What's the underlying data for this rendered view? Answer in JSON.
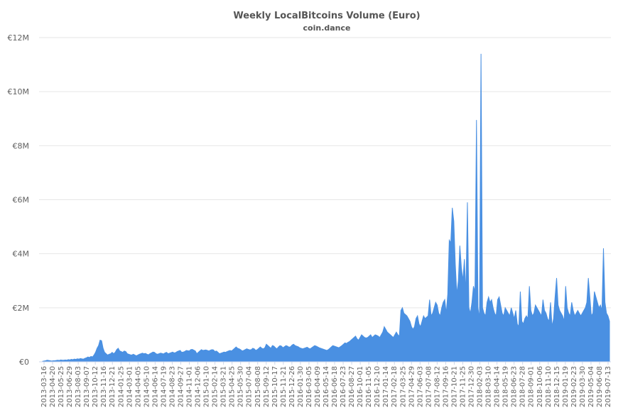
{
  "chart_data": {
    "type": "area",
    "title": "Weekly LocalBitcoins Volume (Euro)",
    "subtitle": "coin.dance",
    "xlabel": "",
    "ylabel": "",
    "ylim": [
      0,
      12000000
    ],
    "y_ticks": [
      {
        "value": 0,
        "label": "€0"
      },
      {
        "value": 2000000,
        "label": "€2M"
      },
      {
        "value": 4000000,
        "label": "€4M"
      },
      {
        "value": 6000000,
        "label": "€6M"
      },
      {
        "value": 8000000,
        "label": "€8M"
      },
      {
        "value": 10000000,
        "label": "€10M"
      },
      {
        "value": 12000000,
        "label": "€12M"
      }
    ],
    "x_ticks": [
      "2013-03-16",
      "2013-04-20",
      "2013-05-25",
      "2013-06-29",
      "2013-08-03",
      "2013-09-07",
      "2013-10-12",
      "2013-11-16",
      "2013-12-21",
      "2014-01-25",
      "2014-03-01",
      "2014-04-05",
      "2014-05-10",
      "2014-06-14",
      "2014-07-19",
      "2014-08-23",
      "2014-09-27",
      "2014-11-01",
      "2014-12-06",
      "2015-01-10",
      "2015-02-14",
      "2015-03-21",
      "2015-04-25",
      "2015-05-30",
      "2015-07-04",
      "2015-08-08",
      "2015-09-12",
      "2015-10-17",
      "2015-11-21",
      "2015-12-26",
      "2016-01-30",
      "2016-03-05",
      "2016-04-09",
      "2016-05-14",
      "2016-06-18",
      "2016-07-23",
      "2016-08-27",
      "2016-10-01",
      "2016-11-05",
      "2016-12-10",
      "2017-01-14",
      "2017-02-18",
      "2017-03-25",
      "2017-04-29",
      "2017-06-03",
      "2017-07-08",
      "2017-08-12",
      "2017-09-16",
      "2017-10-21",
      "2017-11-25",
      "2017-12-30",
      "2018-02-03",
      "2018-03-10",
      "2018-04-14",
      "2018-05-19",
      "2018-06-23",
      "2018-07-28",
      "2018-09-01",
      "2018-10-06",
      "2018-11-10",
      "2018-12-15",
      "2019-01-19",
      "2019-02-23",
      "2019-03-30",
      "2019-05-04",
      "2019-06-08",
      "2019-07-13"
    ],
    "grid": true,
    "legend": "none",
    "color": "#4a90e2",
    "series": [
      {
        "name": "",
        "start_date": "2013-03-16",
        "values": [
          20000,
          30000,
          40000,
          60000,
          50000,
          40000,
          30000,
          40000,
          40000,
          50000,
          60000,
          50000,
          70000,
          60000,
          60000,
          70000,
          60000,
          80000,
          70000,
          90000,
          80000,
          100000,
          90000,
          110000,
          100000,
          120000,
          110000,
          100000,
          130000,
          150000,
          180000,
          160000,
          200000,
          180000,
          250000,
          350000,
          500000,
          600000,
          800000,
          780000,
          500000,
          350000,
          300000,
          250000,
          280000,
          300000,
          350000,
          300000,
          350000,
          450000,
          500000,
          400000,
          380000,
          350000,
          400000,
          380000,
          300000,
          280000,
          260000,
          250000,
          280000,
          250000,
          220000,
          250000,
          280000,
          300000,
          320000,
          300000,
          310000,
          280000,
          260000,
          300000,
          330000,
          360000,
          350000,
          300000,
          280000,
          300000,
          320000,
          310000,
          290000,
          330000,
          350000,
          300000,
          320000,
          340000,
          360000,
          330000,
          340000,
          380000,
          400000,
          420000,
          350000,
          360000,
          380000,
          420000,
          410000,
          400000,
          450000,
          460000,
          430000,
          400000,
          300000,
          350000,
          400000,
          450000,
          420000,
          430000,
          440000,
          420000,
          400000,
          430000,
          450000,
          440000,
          380000,
          400000,
          350000,
          300000,
          320000,
          340000,
          360000,
          350000,
          380000,
          400000,
          420000,
          400000,
          450000,
          500000,
          550000,
          500000,
          480000,
          450000,
          400000,
          420000,
          450000,
          480000,
          460000,
          440000,
          450000,
          500000,
          480000,
          420000,
          450000,
          500000,
          550000,
          500000,
          480000,
          520000,
          650000,
          600000,
          550000,
          500000,
          600000,
          580000,
          520000,
          480000,
          550000,
          600000,
          580000,
          520000,
          560000,
          600000,
          580000,
          540000,
          560000,
          620000,
          650000,
          600000,
          580000,
          560000,
          520000,
          500000,
          480000,
          500000,
          520000,
          540000,
          500000,
          480000,
          520000,
          560000,
          600000,
          580000,
          550000,
          520000,
          500000,
          480000,
          460000,
          440000,
          420000,
          450000,
          500000,
          550000,
          600000,
          580000,
          560000,
          540000,
          520000,
          560000,
          600000,
          650000,
          700000,
          680000,
          720000,
          750000,
          800000,
          850000,
          900000,
          950000,
          850000,
          800000,
          900000,
          1000000,
          950000,
          900000,
          880000,
          900000,
          950000,
          1000000,
          900000,
          950000,
          1000000,
          980000,
          950000,
          900000,
          1000000,
          1100000,
          1300000,
          1200000,
          1100000,
          1050000,
          1000000,
          950000,
          900000,
          1000000,
          1100000,
          1000000,
          950000,
          1900000,
          2000000,
          1800000,
          1750000,
          1700000,
          1600000,
          1500000,
          1300000,
          1200000,
          1300000,
          1600000,
          1700000,
          1400000,
          1300000,
          1500000,
          1700000,
          1600000,
          1650000,
          1700000,
          2300000,
          1700000,
          1800000,
          2000000,
          2200000,
          2100000,
          1800000,
          1700000,
          2000000,
          2200000,
          2300000,
          1800000,
          2500000,
          4500000,
          4400000,
          5700000,
          5200000,
          3600000,
          2500000,
          3000000,
          4300000,
          3500000,
          3000000,
          3800000,
          2500000,
          5900000,
          2000000,
          1800000,
          2200000,
          2800000,
          2600000,
          8950000,
          2000000,
          1600000,
          11400000,
          2000000,
          1800000,
          1700000,
          2200000,
          2400000,
          2200000,
          2300000,
          2000000,
          1800000,
          1700000,
          2300000,
          2400000,
          2100000,
          1800000,
          1700000,
          2000000,
          1900000,
          1800000,
          1700000,
          2000000,
          1800000,
          1600000,
          1900000,
          1400000,
          1300000,
          2600000,
          1500000,
          1400000,
          1600000,
          1700000,
          1600000,
          2800000,
          1900000,
          1700000,
          1800000,
          2100000,
          2000000,
          1900000,
          1800000,
          1700000,
          2300000,
          1900000,
          1800000,
          1600000,
          1500000,
          2200000,
          1300000,
          1600000,
          2400000,
          3100000,
          2100000,
          1900000,
          1800000,
          1700000,
          1500000,
          2800000,
          2000000,
          1800000,
          1700000,
          2200000,
          1900000,
          1700000,
          1800000,
          1900000,
          1800000,
          1700000,
          1800000,
          1900000,
          2000000,
          2200000,
          3100000,
          2400000,
          1700000,
          1800000,
          2600000,
          2400000,
          2200000,
          2000000,
          2100000,
          1900000,
          4200000,
          2200000,
          1800000,
          1700000,
          1500000
        ]
      }
    ]
  }
}
